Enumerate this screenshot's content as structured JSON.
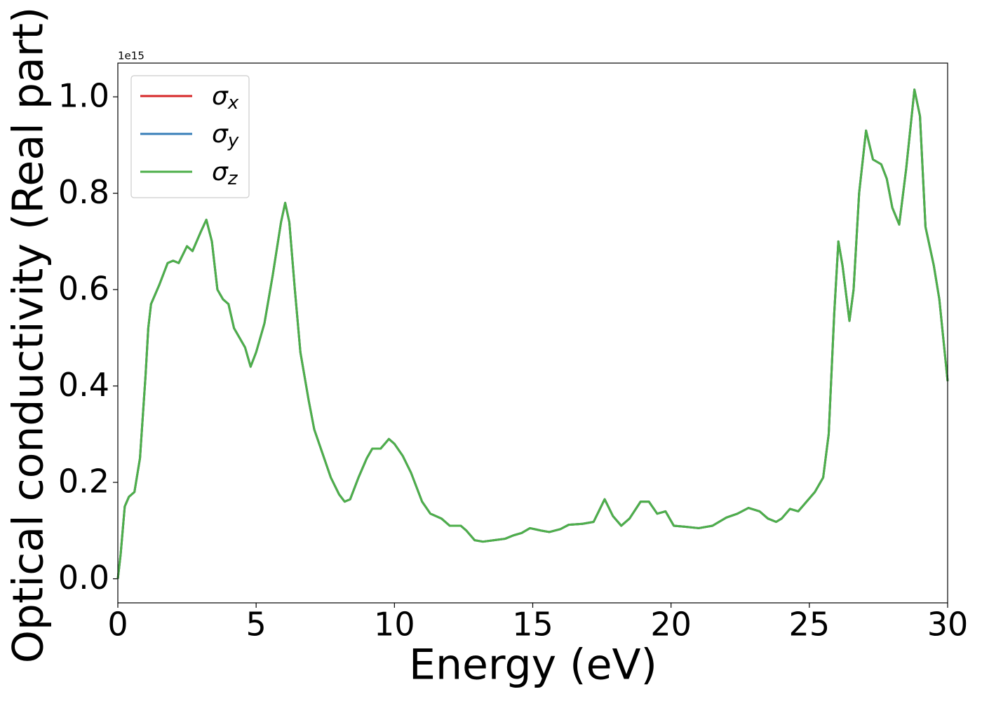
{
  "chart_data": {
    "type": "line",
    "x_label": "Energy (eV)",
    "y_label": "Optical conductivity (Real part)",
    "y_offset_label": "1e15",
    "xlim": [
      0,
      30
    ],
    "ylim": [
      -0.05,
      1.07
    ],
    "xticks": [
      0,
      5,
      10,
      15,
      20,
      25,
      30
    ],
    "yticks": [
      {
        "value": 0,
        "label": "0.0"
      },
      0.2,
      0.4,
      0.6,
      0.8,
      {
        "value": 1,
        "label": "1.0"
      }
    ],
    "legend": "upper left",
    "x": [
      0,
      0.1,
      0.25,
      0.4,
      0.6,
      0.8,
      1.0,
      1.1,
      1.2,
      1.5,
      1.8,
      2.0,
      2.2,
      2.5,
      2.7,
      3.0,
      3.2,
      3.4,
      3.6,
      3.8,
      4.0,
      4.2,
      4.4,
      4.6,
      4.8,
      5.0,
      5.3,
      5.6,
      5.9,
      6.05,
      6.2,
      6.4,
      6.6,
      6.9,
      7.1,
      7.4,
      7.7,
      8.0,
      8.2,
      8.4,
      8.7,
      9.0,
      9.2,
      9.5,
      9.8,
      10.0,
      10.3,
      10.6,
      11.0,
      11.3,
      11.7,
      12.0,
      12.4,
      12.6,
      12.9,
      13.2,
      13.6,
      14.0,
      14.3,
      14.6,
      14.9,
      15.3,
      15.6,
      16.0,
      16.3,
      16.8,
      17.2,
      17.6,
      17.9,
      18.2,
      18.5,
      18.9,
      19.2,
      19.5,
      19.8,
      20.1,
      20.5,
      21.0,
      21.5,
      22.0,
      22.4,
      22.8,
      23.2,
      23.5,
      23.8,
      24.0,
      24.3,
      24.6,
      24.9,
      25.2,
      25.5,
      25.7,
      25.9,
      26.05,
      26.2,
      26.45,
      26.6,
      26.8,
      27.05,
      27.3,
      27.6,
      27.8,
      28.0,
      28.25,
      28.5,
      28.8,
      29.0,
      29.2,
      29.5,
      29.7,
      30.0
    ],
    "series": [
      {
        "name": "σx",
        "color": "#d62728",
        "values": [
          0.0,
          0.05,
          0.15,
          0.17,
          0.18,
          0.25,
          0.42,
          0.52,
          0.57,
          0.61,
          0.655,
          0.66,
          0.655,
          0.69,
          0.68,
          0.72,
          0.745,
          0.7,
          0.6,
          0.58,
          0.57,
          0.52,
          0.5,
          0.48,
          0.44,
          0.47,
          0.53,
          0.63,
          0.74,
          0.78,
          0.74,
          0.6,
          0.47,
          0.37,
          0.31,
          0.26,
          0.21,
          0.175,
          0.16,
          0.165,
          0.21,
          0.25,
          0.27,
          0.27,
          0.29,
          0.28,
          0.255,
          0.22,
          0.16,
          0.135,
          0.125,
          0.11,
          0.11,
          0.1,
          0.08,
          0.077,
          0.08,
          0.083,
          0.09,
          0.095,
          0.105,
          0.1,
          0.097,
          0.103,
          0.112,
          0.114,
          0.118,
          0.165,
          0.13,
          0.11,
          0.125,
          0.16,
          0.16,
          0.135,
          0.14,
          0.11,
          0.108,
          0.105,
          0.11,
          0.127,
          0.135,
          0.147,
          0.14,
          0.125,
          0.118,
          0.125,
          0.145,
          0.14,
          0.16,
          0.18,
          0.21,
          0.3,
          0.55,
          0.7,
          0.65,
          0.535,
          0.6,
          0.8,
          0.93,
          0.87,
          0.86,
          0.83,
          0.77,
          0.735,
          0.85,
          1.015,
          0.96,
          0.73,
          0.65,
          0.58,
          0.41
        ]
      },
      {
        "name": "σy",
        "color": "#377eb8",
        "values": [
          0.0,
          0.05,
          0.15,
          0.17,
          0.18,
          0.25,
          0.42,
          0.52,
          0.57,
          0.61,
          0.655,
          0.66,
          0.655,
          0.69,
          0.68,
          0.72,
          0.745,
          0.7,
          0.6,
          0.58,
          0.57,
          0.52,
          0.5,
          0.48,
          0.44,
          0.47,
          0.53,
          0.63,
          0.74,
          0.78,
          0.74,
          0.6,
          0.47,
          0.37,
          0.31,
          0.26,
          0.21,
          0.175,
          0.16,
          0.165,
          0.21,
          0.25,
          0.27,
          0.27,
          0.29,
          0.28,
          0.255,
          0.22,
          0.16,
          0.135,
          0.125,
          0.11,
          0.11,
          0.1,
          0.08,
          0.077,
          0.08,
          0.083,
          0.09,
          0.095,
          0.105,
          0.1,
          0.097,
          0.103,
          0.112,
          0.114,
          0.118,
          0.165,
          0.13,
          0.11,
          0.125,
          0.16,
          0.16,
          0.135,
          0.14,
          0.11,
          0.108,
          0.105,
          0.11,
          0.127,
          0.135,
          0.147,
          0.14,
          0.125,
          0.118,
          0.125,
          0.145,
          0.14,
          0.16,
          0.18,
          0.21,
          0.3,
          0.55,
          0.7,
          0.65,
          0.535,
          0.6,
          0.8,
          0.93,
          0.87,
          0.86,
          0.83,
          0.77,
          0.735,
          0.85,
          1.015,
          0.96,
          0.73,
          0.65,
          0.58,
          0.41
        ]
      },
      {
        "name": "σz",
        "color": "#4daf4a",
        "values": [
          0.0,
          0.05,
          0.15,
          0.17,
          0.18,
          0.25,
          0.42,
          0.52,
          0.57,
          0.61,
          0.655,
          0.66,
          0.655,
          0.69,
          0.68,
          0.72,
          0.745,
          0.7,
          0.6,
          0.58,
          0.57,
          0.52,
          0.5,
          0.48,
          0.44,
          0.47,
          0.53,
          0.63,
          0.74,
          0.78,
          0.74,
          0.6,
          0.47,
          0.37,
          0.31,
          0.26,
          0.21,
          0.175,
          0.16,
          0.165,
          0.21,
          0.25,
          0.27,
          0.27,
          0.29,
          0.28,
          0.255,
          0.22,
          0.16,
          0.135,
          0.125,
          0.11,
          0.11,
          0.1,
          0.08,
          0.077,
          0.08,
          0.083,
          0.09,
          0.095,
          0.105,
          0.1,
          0.097,
          0.103,
          0.112,
          0.114,
          0.118,
          0.165,
          0.13,
          0.11,
          0.125,
          0.16,
          0.16,
          0.135,
          0.14,
          0.11,
          0.108,
          0.105,
          0.11,
          0.127,
          0.135,
          0.147,
          0.14,
          0.125,
          0.118,
          0.125,
          0.145,
          0.14,
          0.16,
          0.18,
          0.21,
          0.3,
          0.55,
          0.7,
          0.65,
          0.535,
          0.6,
          0.8,
          0.93,
          0.87,
          0.86,
          0.83,
          0.77,
          0.735,
          0.85,
          1.015,
          0.96,
          0.73,
          0.65,
          0.58,
          0.41
        ]
      }
    ]
  }
}
